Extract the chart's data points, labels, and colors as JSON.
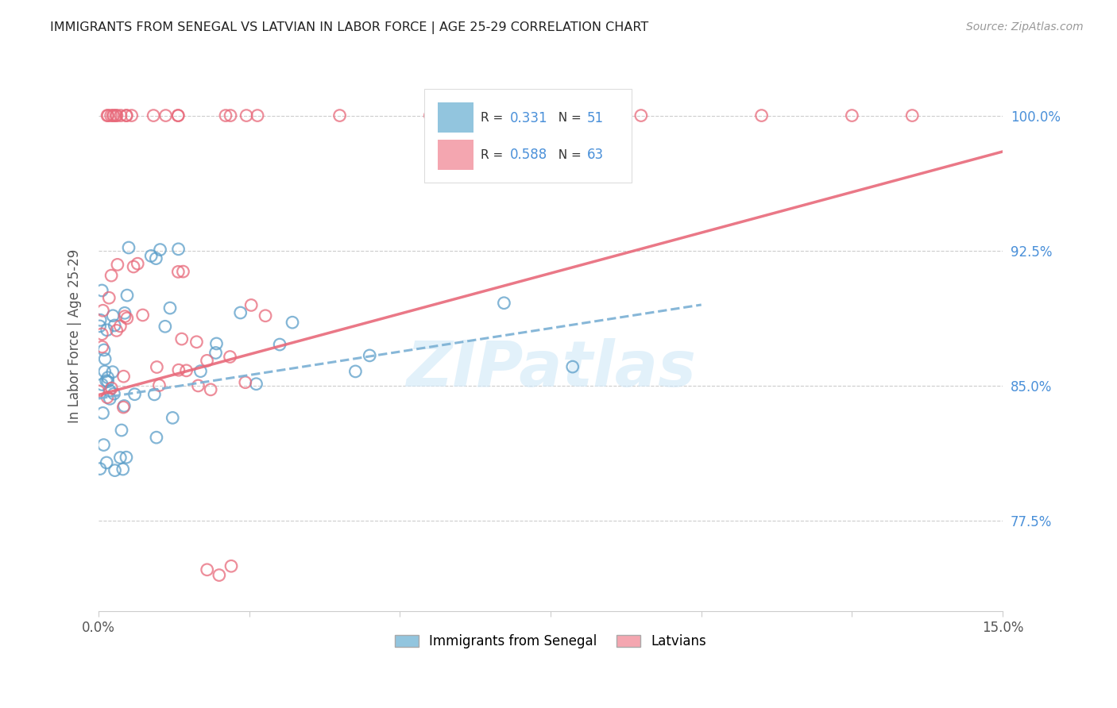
{
  "title": "IMMIGRANTS FROM SENEGAL VS LATVIAN IN LABOR FORCE | AGE 25-29 CORRELATION CHART",
  "source": "Source: ZipAtlas.com",
  "ylabel": "In Labor Force | Age 25-29",
  "legend_blue_r": "0.331",
  "legend_blue_n": "51",
  "legend_pink_r": "0.588",
  "legend_pink_n": "63",
  "legend_blue_label": "Immigrants from Senegal",
  "legend_pink_label": "Latvians",
  "blue_color": "#92c5de",
  "pink_color": "#f4a6b0",
  "blue_edge_color": "#5b9ec9",
  "pink_edge_color": "#e8697a",
  "blue_line_color": "#7ab0d4",
  "pink_line_color": "#e8697a",
  "xlim": [
    0.0,
    0.15
  ],
  "ylim": [
    0.725,
    1.03
  ],
  "yticks": [
    0.775,
    0.85,
    0.925,
    1.0
  ],
  "ytick_labels": [
    "77.5%",
    "85.0%",
    "92.5%",
    "100.0%"
  ],
  "background": "#ffffff",
  "watermark_color": "#d0e8f8",
  "watermark_text": "ZIPatlas"
}
